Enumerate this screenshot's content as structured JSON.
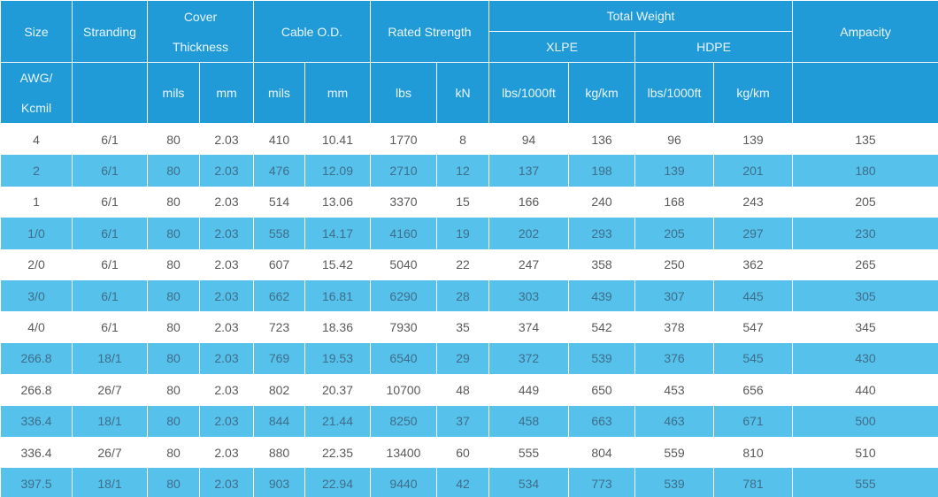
{
  "header": {
    "size": "Size",
    "stranding": "Stranding",
    "cover_1": "Cover",
    "cover_2": "Thickness",
    "cable_od": "Cable O.D.",
    "rated_strength": "Rated Strength",
    "total_weight": "Total Weight",
    "xlpe": "XLPE",
    "hdpe": "HDPE",
    "ampacity": "Ampacity",
    "units": {
      "size_1": "AWG/",
      "size_2": "Kcmil",
      "cover_mils": "mils",
      "cover_mm": "mm",
      "od_mils": "mils",
      "od_mm": "mm",
      "lbs": "lbs",
      "kn": "kN",
      "xlpe_lbs": "lbs/1000ft",
      "xlpe_kgkm": "kg/km",
      "hdpe_lbs": "lbs/1000ft",
      "hdpe_kgkm": "kg/km"
    }
  },
  "rows": [
    [
      "4",
      "6/1",
      "80",
      "2.03",
      "410",
      "10.41",
      "1770",
      "8",
      "94",
      "136",
      "96",
      "139",
      "135"
    ],
    [
      "2",
      "6/1",
      "80",
      "2.03",
      "476",
      "12.09",
      "2710",
      "12",
      "137",
      "198",
      "139",
      "201",
      "180"
    ],
    [
      "1",
      "6/1",
      "80",
      "2.03",
      "514",
      "13.06",
      "3370",
      "15",
      "166",
      "240",
      "168",
      "243",
      "205"
    ],
    [
      "1/0",
      "6/1",
      "80",
      "2.03",
      "558",
      "14.17",
      "4160",
      "19",
      "202",
      "293",
      "205",
      "297",
      "230"
    ],
    [
      "2/0",
      "6/1",
      "80",
      "2.03",
      "607",
      "15.42",
      "5040",
      "22",
      "247",
      "358",
      "250",
      "362",
      "265"
    ],
    [
      "3/0",
      "6/1",
      "80",
      "2.03",
      "662",
      "16.81",
      "6290",
      "28",
      "303",
      "439",
      "307",
      "445",
      "305"
    ],
    [
      "4/0",
      "6/1",
      "80",
      "2.03",
      "723",
      "18.36",
      "7930",
      "35",
      "374",
      "542",
      "378",
      "547",
      "345"
    ],
    [
      "266.8",
      "18/1",
      "80",
      "2.03",
      "769",
      "19.53",
      "6540",
      "29",
      "372",
      "539",
      "376",
      "545",
      "430"
    ],
    [
      "266.8",
      "26/7",
      "80",
      "2.03",
      "802",
      "20.37",
      "10700",
      "48",
      "449",
      "650",
      "453",
      "656",
      "440"
    ],
    [
      "336.4",
      "18/1",
      "80",
      "2.03",
      "844",
      "21.44",
      "8250",
      "37",
      "458",
      "663",
      "463",
      "671",
      "500"
    ],
    [
      "336.4",
      "26/7",
      "80",
      "2.03",
      "880",
      "22.35",
      "13400",
      "60",
      "555",
      "804",
      "559",
      "810",
      "510"
    ],
    [
      "397.5",
      "18/1",
      "80",
      "2.03",
      "903",
      "22.94",
      "9440",
      "42",
      "534",
      "773",
      "539",
      "781",
      "555"
    ]
  ],
  "colors": {
    "header_bg": "#219bd8",
    "row_alt_bg": "#56c1ea",
    "row_bg": "#ffffff"
  }
}
